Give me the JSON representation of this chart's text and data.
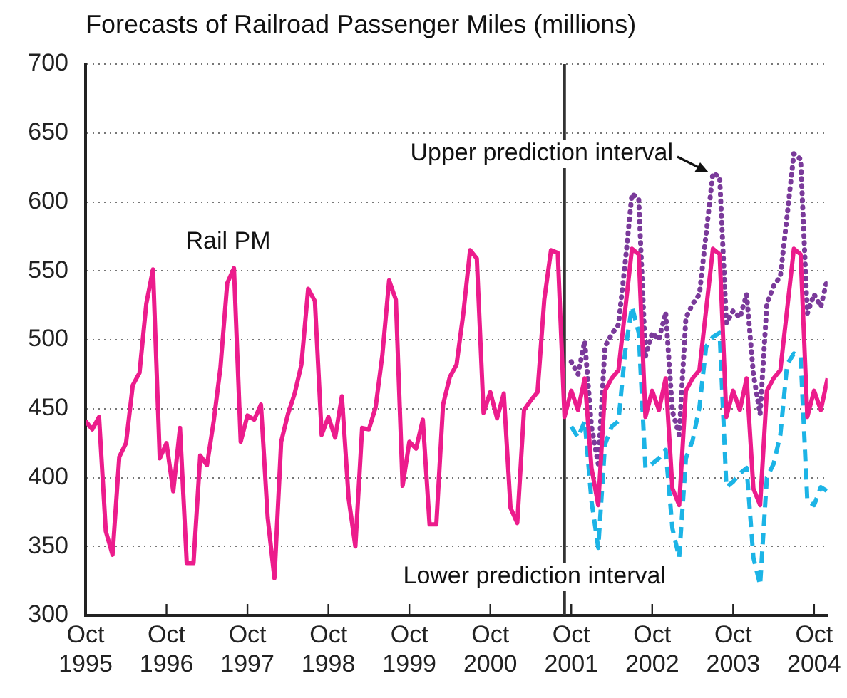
{
  "chart_data": {
    "type": "line",
    "title": "Forecasts of Railroad Passenger Miles (millions)",
    "x": [
      "1995-10",
      "1995-11",
      "1995-12",
      "1996-01",
      "1996-02",
      "1996-03",
      "1996-04",
      "1996-05",
      "1996-06",
      "1996-07",
      "1996-08",
      "1996-09",
      "1996-10",
      "1996-11",
      "1996-12",
      "1997-01",
      "1997-02",
      "1997-03",
      "1997-04",
      "1997-05",
      "1997-06",
      "1997-07",
      "1997-08",
      "1997-09",
      "1997-10",
      "1997-11",
      "1997-12",
      "1998-01",
      "1998-02",
      "1998-03",
      "1998-04",
      "1998-05",
      "1998-06",
      "1998-07",
      "1998-08",
      "1998-09",
      "1998-10",
      "1998-11",
      "1998-12",
      "1999-01",
      "1999-02",
      "1999-03",
      "1999-04",
      "1999-05",
      "1999-06",
      "1999-07",
      "1999-08",
      "1999-09",
      "1999-10",
      "1999-11",
      "1999-12",
      "2000-01",
      "2000-02",
      "2000-03",
      "2000-04",
      "2000-05",
      "2000-06",
      "2000-07",
      "2000-08",
      "2000-09",
      "2000-10",
      "2000-11",
      "2000-12",
      "2001-01",
      "2001-02",
      "2001-03",
      "2001-04",
      "2001-05",
      "2001-06",
      "2001-07",
      "2001-08",
      "2001-09",
      "2001-10",
      "2001-11",
      "2001-12",
      "2002-01",
      "2002-02",
      "2002-03",
      "2002-04",
      "2002-05",
      "2002-06",
      "2002-07",
      "2002-08",
      "2002-09",
      "2002-10",
      "2002-11",
      "2002-12",
      "2003-01",
      "2003-02",
      "2003-03",
      "2003-04",
      "2003-05",
      "2003-06",
      "2003-07",
      "2003-08",
      "2003-09",
      "2003-10",
      "2003-11",
      "2003-12",
      "2004-01",
      "2004-02",
      "2004-03",
      "2004-04",
      "2004-05",
      "2004-06",
      "2004-07",
      "2004-08",
      "2004-09",
      "2004-10",
      "2004-11",
      "2004-12"
    ],
    "series": [
      {
        "name": "Rail PM",
        "color": "#ec1c8c",
        "line_style": "solid",
        "values": [
          441,
          435,
          444,
          361,
          344,
          415,
          425,
          467,
          476,
          526,
          551,
          414,
          425,
          390,
          436,
          338,
          338,
          416,
          409,
          441,
          480,
          541,
          552,
          426,
          445,
          442,
          453,
          371,
          327,
          426,
          446,
          461,
          482,
          537,
          528,
          431,
          444,
          429,
          459,
          385,
          350,
          436,
          435,
          451,
          489,
          543,
          529,
          394,
          426,
          421,
          442,
          366,
          366,
          453,
          473,
          482,
          519,
          565,
          559,
          447,
          462,
          443,
          461,
          378,
          367,
          449,
          456,
          462,
          529,
          565,
          563,
          444,
          463,
          449,
          472,
          407,
          380,
          463,
          472,
          478,
          522,
          566,
          562,
          444,
          463,
          449,
          472,
          392,
          380,
          463,
          472,
          478,
          522,
          566,
          562,
          444,
          463,
          449,
          472,
          392,
          380,
          463,
          472,
          478,
          522,
          566,
          562,
          444,
          463,
          449,
          472
        ]
      },
      {
        "name": "Upper prediction interval",
        "color": "#7a3a9a",
        "line_style": "dotted",
        "values": [
          null,
          null,
          null,
          null,
          null,
          null,
          null,
          null,
          null,
          null,
          null,
          null,
          null,
          null,
          null,
          null,
          null,
          null,
          null,
          null,
          null,
          null,
          null,
          null,
          null,
          null,
          null,
          null,
          null,
          null,
          null,
          null,
          null,
          null,
          null,
          null,
          null,
          null,
          null,
          null,
          null,
          null,
          null,
          null,
          null,
          null,
          null,
          null,
          null,
          null,
          null,
          null,
          null,
          null,
          null,
          null,
          null,
          null,
          null,
          null,
          null,
          null,
          null,
          null,
          null,
          null,
          null,
          null,
          null,
          null,
          null,
          null,
          484,
          475,
          499,
          437,
          410,
          495,
          504,
          511,
          556,
          606,
          602,
          488,
          505,
          500,
          520,
          448,
          431,
          516,
          526,
          533,
          577,
          621,
          618,
          512,
          521,
          516,
          533,
          475,
          446,
          526,
          539,
          546,
          590,
          635,
          631,
          519,
          533,
          524,
          545
        ]
      },
      {
        "name": "Lower prediction interval",
        "color": "#1cb4e6",
        "line_style": "dashed",
        "values": [
          null,
          null,
          null,
          null,
          null,
          null,
          null,
          null,
          null,
          null,
          null,
          null,
          null,
          null,
          null,
          null,
          null,
          null,
          null,
          null,
          null,
          null,
          null,
          null,
          null,
          null,
          null,
          null,
          null,
          null,
          null,
          null,
          null,
          null,
          null,
          null,
          null,
          null,
          null,
          null,
          null,
          null,
          null,
          null,
          null,
          null,
          null,
          null,
          null,
          null,
          null,
          null,
          null,
          null,
          null,
          null,
          null,
          null,
          null,
          null,
          null,
          null,
          null,
          null,
          null,
          null,
          null,
          null,
          null,
          null,
          null,
          null,
          437,
          429,
          441,
          383,
          349,
          424,
          437,
          441,
          492,
          524,
          505,
          407,
          410,
          414,
          420,
          363,
          342,
          414,
          427,
          451,
          495,
          502,
          505,
          393,
          397,
          403,
          407,
          342,
          322,
          400,
          410,
          431,
          482,
          490,
          488,
          383,
          380,
          393,
          390
        ]
      }
    ],
    "xlim": [
      "1995-10",
      "2004-12"
    ],
    "xticks": [
      {
        "value": "1995-10",
        "label": "Oct 1995"
      },
      {
        "value": "1996-10",
        "label": "Oct 1996"
      },
      {
        "value": "1997-10",
        "label": "Oct 1997"
      },
      {
        "value": "1998-10",
        "label": "Oct 1998"
      },
      {
        "value": "1999-10",
        "label": "Oct 1999"
      },
      {
        "value": "2000-10",
        "label": "Oct 2000"
      },
      {
        "value": "2001-10",
        "label": "Oct 2001"
      },
      {
        "value": "2002-10",
        "label": "Oct 2002"
      },
      {
        "value": "2003-10",
        "label": "Oct 2003"
      },
      {
        "value": "2004-10",
        "label": "Oct 2004"
      }
    ],
    "ylim": [
      300,
      700
    ],
    "yticks": [
      300,
      350,
      400,
      450,
      500,
      550,
      600,
      650,
      700
    ],
    "grid": "y",
    "marker": "none",
    "ref_lines": [
      {
        "axis": "x",
        "value": "2001-09",
        "color": "#333333"
      }
    ]
  }
}
